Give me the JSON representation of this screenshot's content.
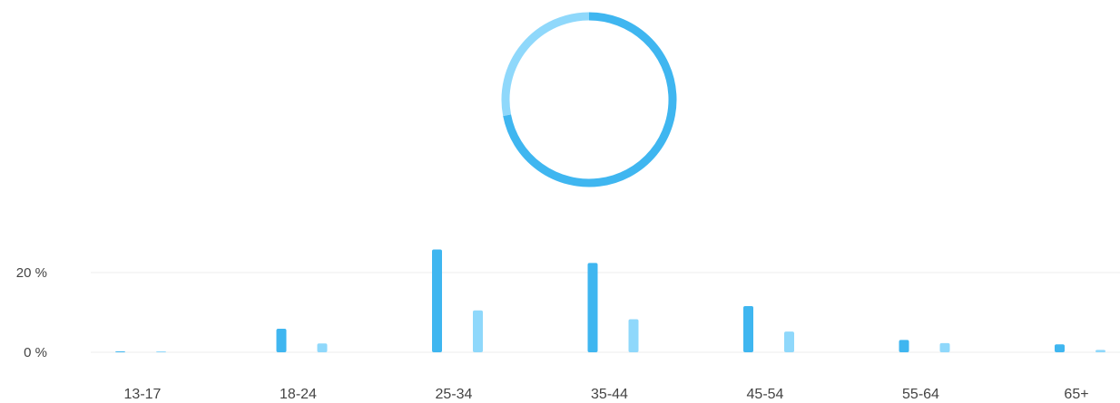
{
  "chart_data": [
    {
      "type": "pie",
      "style": "donut",
      "slices": [
        {
          "value": 72,
          "color": "#3fb6f0"
        },
        {
          "value": 28,
          "color": "#8fd8fb"
        }
      ]
    },
    {
      "type": "bar",
      "categories": [
        "13-17",
        "18-24",
        "25-34",
        "35-44",
        "45-54",
        "55-64",
        "65+"
      ],
      "series": [
        {
          "values": [
            0.1,
            5.9,
            25.8,
            22.4,
            11.6,
            3.1,
            2.0
          ],
          "color": "#3fb6f0"
        },
        {
          "values": [
            0.2,
            2.2,
            10.5,
            8.3,
            5.2,
            2.3,
            0.6
          ],
          "color": "#8fd8fb"
        }
      ],
      "yticks": [
        "0 %",
        "20 %"
      ],
      "ytick_values": [
        0,
        20
      ],
      "ylim": [
        0,
        27
      ],
      "grid": true,
      "xlabel": "",
      "ylabel": ""
    }
  ]
}
